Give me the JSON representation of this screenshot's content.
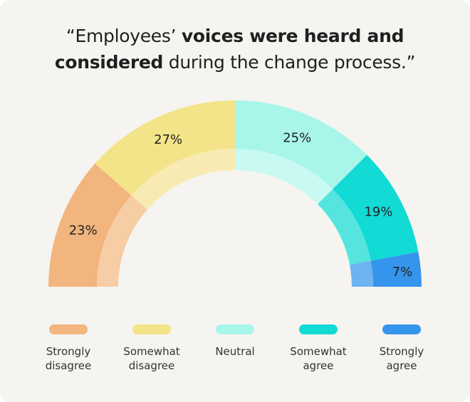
{
  "title": {
    "line1": [
      {
        "text": "“Employees’ ",
        "bold": false
      },
      {
        "text": "voices were heard and",
        "bold": true
      }
    ],
    "line2": [
      {
        "text": "considered",
        "bold": true
      },
      {
        "text": " during the change process.”",
        "bold": false
      }
    ]
  },
  "chart_data": {
    "type": "pie",
    "variant": "semi-donut",
    "categories": [
      "Strongly disagree",
      "Somewhat disagree",
      "Neutral",
      "Somewhat agree",
      "Strongly agree"
    ],
    "values": [
      23,
      27,
      25,
      19,
      7
    ],
    "data_labels": [
      "23%",
      "27%",
      "25%",
      "19%",
      "7%"
    ],
    "colors": [
      "#F2B57E",
      "#F3E48A",
      "#A8F6EA",
      "#12DAD5",
      "#3595EC"
    ],
    "inner_colors": [
      "#F6CDA5",
      "#F7EBB3",
      "#C8F9F2",
      "#56E4DF",
      "#6DB3F1"
    ],
    "legend": {
      "position": "bottom",
      "labels": [
        [
          "Strongly",
          "disagree"
        ],
        [
          "Somewhat",
          "disagree"
        ],
        [
          "Neutral"
        ],
        [
          "Somewhat",
          "agree"
        ],
        [
          "Strongly",
          "agree"
        ]
      ]
    }
  }
}
